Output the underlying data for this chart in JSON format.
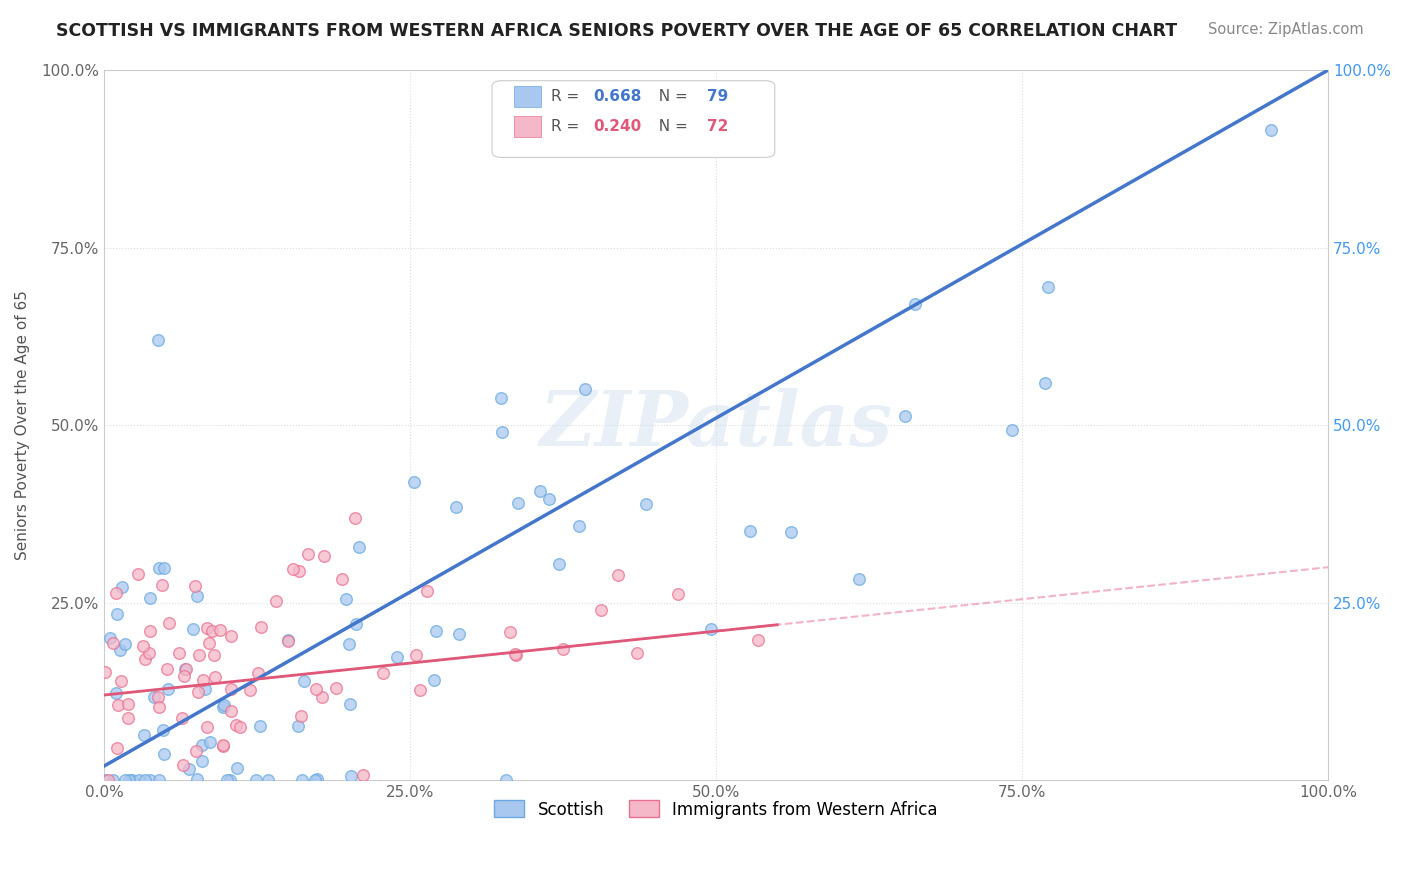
{
  "title": "SCOTTISH VS IMMIGRANTS FROM WESTERN AFRICA SENIORS POVERTY OVER THE AGE OF 65 CORRELATION CHART",
  "source": "Source: ZipAtlas.com",
  "ylabel": "Seniors Poverty Over the Age of 65",
  "x_range": [
    0,
    1
  ],
  "y_range": [
    0,
    1
  ],
  "watermark": "ZIPatlas",
  "series1": {
    "label": "Scottish",
    "R": 0.668,
    "N": 79,
    "color": "#A8C8F0",
    "edge_color": "#6AAAE0",
    "line_color": "#4477CC"
  },
  "series2": {
    "label": "Immigrants from Western Africa",
    "R": 0.24,
    "N": 72,
    "color": "#F5B8C8",
    "edge_color": "#E87090",
    "line_color": "#E05878",
    "dashed_color": "#F0A0B8"
  },
  "background_color": "#FFFFFF",
  "grid_color": "#DDDDDD",
  "title_color": "#222222",
  "source_color": "#888888",
  "left_tick_color": "#666666",
  "right_tick_color": "#4499EE"
}
